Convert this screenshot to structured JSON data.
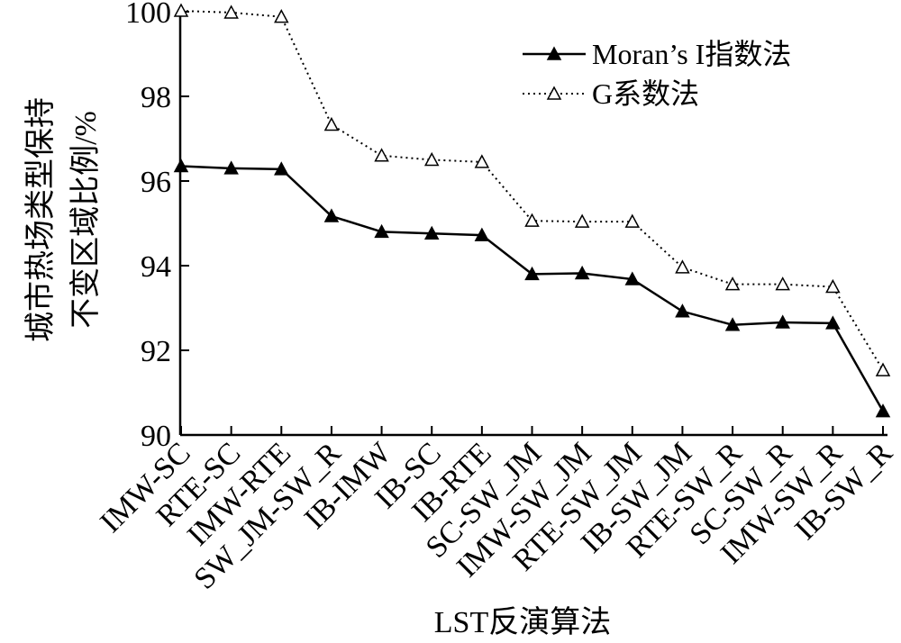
{
  "chart_data": {
    "type": "line",
    "categories": [
      "IMW-SC",
      "RTE-SC",
      "IMW-RTE",
      "SW_JM-SW_R",
      "IB-IMW",
      "IB-SC",
      "IB-RTE",
      "SC-SW_JM",
      "IMW-SW_JM",
      "RTE-SW_JM",
      "IB-SW_JM",
      "RTE-SW_R",
      "SC-SW_R",
      "IMW-SW_R",
      "IB-SW_R"
    ],
    "series": [
      {
        "name": "Moran’s I指数法",
        "marker": "filled-triangle",
        "line": "solid",
        "values": [
          96.35,
          96.3,
          96.28,
          95.17,
          94.8,
          94.76,
          94.72,
          93.8,
          93.82,
          93.68,
          92.92,
          92.6,
          92.66,
          92.64,
          90.56
        ]
      },
      {
        "name": "G系数法",
        "marker": "open-triangle",
        "line": "dotted",
        "values": [
          100.02,
          99.98,
          99.88,
          97.33,
          96.6,
          96.5,
          96.45,
          95.06,
          95.04,
          95.04,
          93.96,
          93.56,
          93.56,
          93.5,
          91.53
        ]
      }
    ],
    "xlabel": "LST反演算法",
    "ylabel_line1": "城市热场类型保持",
    "ylabel_line2": "不变区域比例/%",
    "ylim": [
      90,
      100
    ],
    "yticks": [
      "90",
      "92",
      "94",
      "96",
      "98",
      "100"
    ],
    "grid": false,
    "legend_position": "top-right",
    "colors": {
      "line": "#000000",
      "background": "#ffffff"
    }
  }
}
